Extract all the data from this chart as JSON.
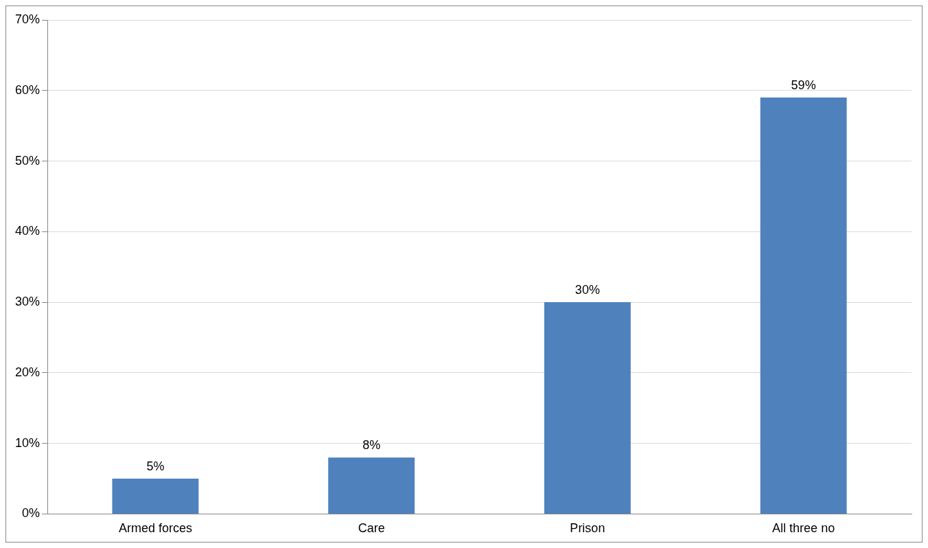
{
  "chart_data": {
    "type": "bar",
    "categories": [
      "Armed forces",
      "Care",
      "Prison",
      "All three no"
    ],
    "values": [
      5,
      8,
      30,
      59
    ],
    "color": "#4f81bd",
    "value_labels": [
      "5%",
      "8%",
      "30%",
      "59%"
    ],
    "ylim": [
      0,
      70
    ],
    "yticks": [
      {
        "value": 0,
        "label": "0%"
      },
      {
        "value": 10,
        "label": "10%"
      },
      {
        "value": 20,
        "label": "20%"
      },
      {
        "value": 30,
        "label": "30%"
      },
      {
        "value": 40,
        "label": "40%"
      },
      {
        "value": 50,
        "label": "50%"
      },
      {
        "value": 60,
        "label": "60%"
      },
      {
        "value": 70,
        "label": "70%"
      }
    ],
    "grid": "y",
    "legend": false
  }
}
